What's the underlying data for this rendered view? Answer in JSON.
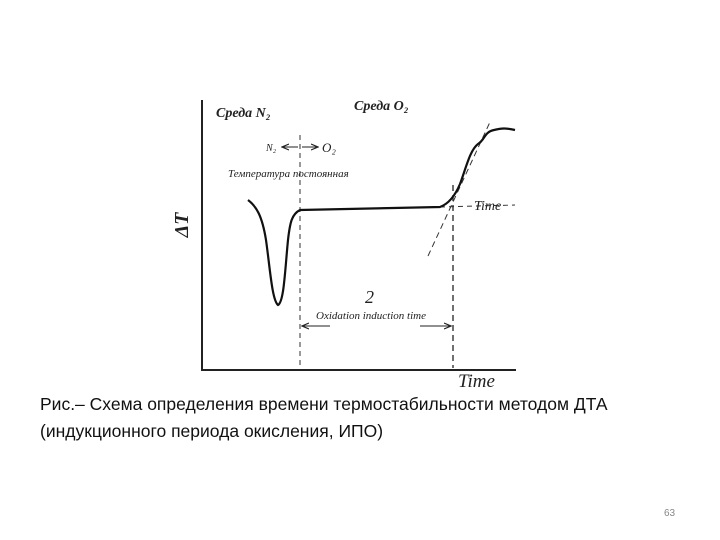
{
  "diagram": {
    "env_n2": "Среда N₂",
    "env_o2": "Среда O₂",
    "switch_from": "N₂",
    "switch_to": "O₂",
    "isothermal": "Температура постоянная",
    "y_axis": "ΔT",
    "x_axis": "Time",
    "interval_number": "2",
    "interval_label": "Oxidation induction time"
  },
  "caption": {
    "line1": "Рис.– Схема определения времени термостабильности  методом ДТА",
    "line2": "(индукционного периода  окисления, ИПО)"
  },
  "page_number": "63"
}
